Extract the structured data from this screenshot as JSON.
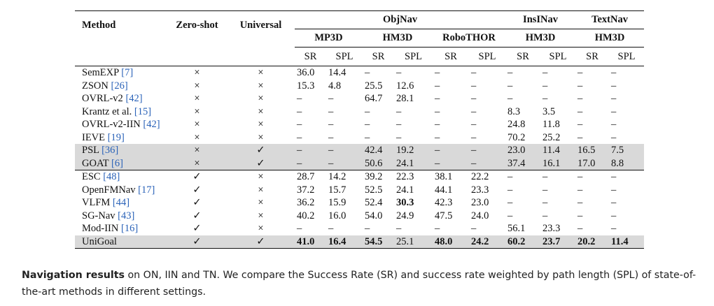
{
  "table": {
    "headers": {
      "method": "Method",
      "zero_shot": "Zero-shot",
      "universal": "Universal",
      "objnav": "ObjNav",
      "insinav": "InsINav",
      "textnav": "TextNav",
      "mp3d": "MP3D",
      "hm3d_obj": "HM3D",
      "robothor": "RoboTHOR",
      "hm3d_ins": "HM3D",
      "hm3d_text": "HM3D",
      "sr": "SR",
      "spl": "SPL"
    },
    "rows": [
      {
        "name": "SemEXP",
        "ref": "[7]",
        "zs": "×",
        "uni": "×",
        "v": [
          "36.0",
          "14.4",
          "–",
          "–",
          "–",
          "–",
          "–",
          "–",
          "–",
          "–"
        ],
        "shade": false,
        "bold": []
      },
      {
        "name": "ZSON",
        "ref": "[26]",
        "zs": "×",
        "uni": "×",
        "v": [
          "15.3",
          "4.8",
          "25.5",
          "12.6",
          "–",
          "–",
          "–",
          "–",
          "–",
          "–"
        ],
        "shade": false,
        "bold": []
      },
      {
        "name": "OVRL-v2",
        "ref": "[42]",
        "zs": "×",
        "uni": "×",
        "v": [
          "–",
          "–",
          "64.7",
          "28.1",
          "–",
          "–",
          "–",
          "–",
          "–",
          "–"
        ],
        "shade": false,
        "bold": []
      },
      {
        "name": "Krantz et al.",
        "ref": "[15]",
        "zs": "×",
        "uni": "×",
        "v": [
          "–",
          "–",
          "–",
          "–",
          "–",
          "–",
          "8.3",
          "3.5",
          "–",
          "–"
        ],
        "shade": false,
        "bold": []
      },
      {
        "name": "OVRL-v2-IIN",
        "ref": "[42]",
        "zs": "×",
        "uni": "×",
        "v": [
          "–",
          "–",
          "–",
          "–",
          "–",
          "–",
          "24.8",
          "11.8",
          "–",
          "–"
        ],
        "shade": false,
        "bold": []
      },
      {
        "name": "IEVE",
        "ref": "[19]",
        "zs": "×",
        "uni": "×",
        "v": [
          "–",
          "–",
          "–",
          "–",
          "–",
          "–",
          "70.2",
          "25.2",
          "–",
          "–"
        ],
        "shade": false,
        "bold": []
      },
      {
        "name": "PSL",
        "ref": "[36]",
        "zs": "×",
        "uni": "✓",
        "v": [
          "–",
          "–",
          "42.4",
          "19.2",
          "–",
          "–",
          "23.0",
          "11.4",
          "16.5",
          "7.5"
        ],
        "shade": true,
        "bold": []
      },
      {
        "name": "GOAT",
        "ref": "[6]",
        "zs": "×",
        "uni": "✓",
        "v": [
          "–",
          "–",
          "50.6",
          "24.1",
          "–",
          "–",
          "37.4",
          "16.1",
          "17.0",
          "8.8"
        ],
        "shade": true,
        "bold": []
      },
      {
        "name": "ESC",
        "ref": "[48]",
        "zs": "✓",
        "uni": "×",
        "v": [
          "28.7",
          "14.2",
          "39.2",
          "22.3",
          "38.1",
          "22.2",
          "–",
          "–",
          "–",
          "–"
        ],
        "shade": false,
        "bold": [],
        "group_start": true
      },
      {
        "name": "OpenFMNav",
        "ref": "[17]",
        "zs": "✓",
        "uni": "×",
        "v": [
          "37.2",
          "15.7",
          "52.5",
          "24.1",
          "44.1",
          "23.3",
          "–",
          "–",
          "–",
          "–"
        ],
        "shade": false,
        "bold": []
      },
      {
        "name": "VLFM",
        "ref": "[44]",
        "zs": "✓",
        "uni": "×",
        "v": [
          "36.2",
          "15.9",
          "52.4",
          "30.3",
          "42.3",
          "23.0",
          "–",
          "–",
          "–",
          "–"
        ],
        "shade": false,
        "bold": [
          3
        ]
      },
      {
        "name": "SG-Nav",
        "ref": "[43]",
        "zs": "✓",
        "uni": "×",
        "v": [
          "40.2",
          "16.0",
          "54.0",
          "24.9",
          "47.5",
          "24.0",
          "–",
          "–",
          "–",
          "–"
        ],
        "shade": false,
        "bold": []
      },
      {
        "name": "Mod-IIN",
        "ref": "[16]",
        "zs": "✓",
        "uni": "×",
        "v": [
          "–",
          "–",
          "–",
          "–",
          "–",
          "–",
          "56.1",
          "23.3",
          "–",
          "–"
        ],
        "shade": false,
        "bold": []
      },
      {
        "name": "UniGoal",
        "ref": "",
        "zs": "✓",
        "uni": "✓",
        "v": [
          "41.0",
          "16.4",
          "54.5",
          "25.1",
          "48.0",
          "24.2",
          "60.2",
          "23.7",
          "20.2",
          "11.4"
        ],
        "shade": true,
        "bold": [
          0,
          1,
          2,
          4,
          5,
          6,
          7,
          8,
          9
        ]
      }
    ]
  },
  "caption": {
    "bold": "Navigation results",
    "text": " on ON, IIN and TN. We compare the Success Rate (SR) and success rate weighted by path length (SPL) of state-of-the-art methods in different settings."
  }
}
